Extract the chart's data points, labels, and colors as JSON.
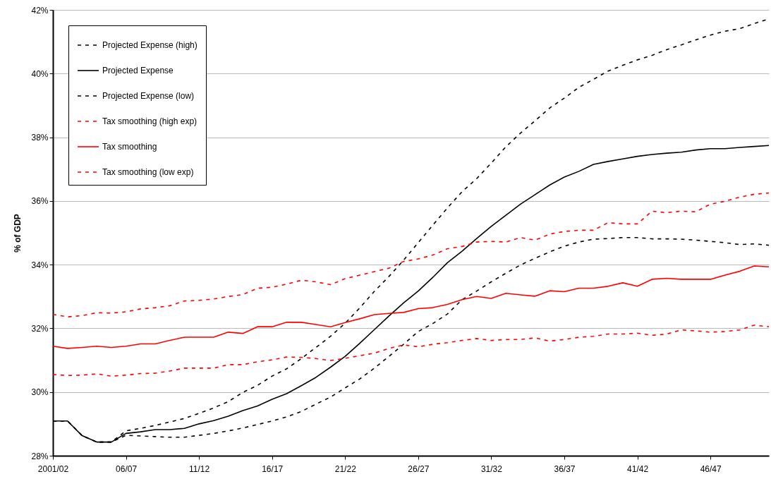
{
  "chart_data": {
    "type": "line",
    "ylabel": "% of GDP",
    "categories": [
      "2001/02",
      null,
      null,
      null,
      null,
      "06/07",
      null,
      null,
      null,
      null,
      "11/12",
      null,
      null,
      null,
      null,
      "16/17",
      null,
      null,
      null,
      null,
      "21/22",
      null,
      null,
      null,
      null,
      "26/27",
      null,
      null,
      null,
      null,
      "31/32",
      null,
      null,
      null,
      null,
      "36/37",
      null,
      null,
      null,
      null,
      "41/42",
      null,
      null,
      null,
      null,
      "46/47",
      null,
      null,
      null,
      null
    ],
    "ylim": [
      28,
      42
    ],
    "yticks": [
      {
        "value": 28,
        "label": "28%"
      },
      {
        "value": 30,
        "label": "30%"
      },
      {
        "value": 32,
        "label": "32%"
      },
      {
        "value": 34,
        "label": "34%"
      },
      {
        "value": 36,
        "label": "36%"
      },
      {
        "value": 38,
        "label": "38%"
      },
      {
        "value": 40,
        "label": "40%"
      },
      {
        "value": 42,
        "label": "42%"
      }
    ],
    "grid": "y",
    "legend": "top left",
    "series": [
      {
        "name": "Projected Expense (high)",
        "color": "#000000",
        "line_style": "dashed",
        "values": [
          29.09,
          29.09,
          28.63,
          28.43,
          28.43,
          28.78,
          28.86,
          28.95,
          29.06,
          29.17,
          29.33,
          29.5,
          29.7,
          29.99,
          30.21,
          30.5,
          30.73,
          31.05,
          31.4,
          31.75,
          32.16,
          32.64,
          33.16,
          33.63,
          34.14,
          34.69,
          35.24,
          35.78,
          36.29,
          36.7,
          37.19,
          37.7,
          38.13,
          38.52,
          38.92,
          39.23,
          39.57,
          39.82,
          40.08,
          40.26,
          40.43,
          40.57,
          40.75,
          40.9,
          41.06,
          41.21,
          41.33,
          41.41,
          41.57,
          41.72
        ]
      },
      {
        "name": "Projected Expense",
        "color": "#000000",
        "line_style": "solid",
        "values": [
          29.09,
          29.09,
          28.63,
          28.43,
          28.43,
          28.7,
          28.75,
          28.82,
          28.82,
          28.86,
          29.0,
          29.1,
          29.24,
          29.42,
          29.56,
          29.77,
          29.95,
          30.2,
          30.46,
          30.78,
          31.12,
          31.53,
          31.96,
          32.39,
          32.8,
          33.17,
          33.6,
          34.06,
          34.42,
          34.82,
          35.2,
          35.55,
          35.9,
          36.2,
          36.5,
          36.75,
          36.93,
          37.15,
          37.24,
          37.32,
          37.4,
          37.46,
          37.5,
          37.53,
          37.6,
          37.64,
          37.64,
          37.68,
          37.71,
          37.74
        ]
      },
      {
        "name": "Projected Expense (low)",
        "color": "#000000",
        "line_style": "dashed",
        "values": [
          29.09,
          29.09,
          28.63,
          28.43,
          28.43,
          28.64,
          28.62,
          28.6,
          28.58,
          28.58,
          28.64,
          28.7,
          28.78,
          28.87,
          28.98,
          29.09,
          29.22,
          29.39,
          29.62,
          29.84,
          30.13,
          30.41,
          30.75,
          31.12,
          31.5,
          31.9,
          32.15,
          32.45,
          32.9,
          33.17,
          33.46,
          33.73,
          33.99,
          34.2,
          34.4,
          34.58,
          34.71,
          34.8,
          34.82,
          34.85,
          34.85,
          34.81,
          34.81,
          34.8,
          34.77,
          34.73,
          34.69,
          34.63,
          34.65,
          34.61
        ]
      },
      {
        "name": "Tax smoothing (high exp)",
        "color": "#ff0000",
        "line_style": "dashed",
        "values": [
          32.44,
          32.36,
          32.4,
          32.49,
          32.48,
          32.52,
          32.61,
          32.65,
          32.71,
          32.86,
          32.88,
          32.92,
          33.0,
          33.06,
          33.26,
          33.29,
          33.39,
          33.51,
          33.46,
          33.37,
          33.56,
          33.67,
          33.78,
          33.89,
          34.1,
          34.18,
          34.3,
          34.5,
          34.57,
          34.71,
          34.73,
          34.71,
          34.85,
          34.77,
          34.96,
          35.04,
          35.08,
          35.08,
          35.32,
          35.28,
          35.28,
          35.68,
          35.63,
          35.68,
          35.66,
          35.9,
          35.99,
          36.12,
          36.21,
          36.25
        ]
      },
      {
        "name": "Tax smoothing",
        "color": "#ff0000",
        "line_style": "solid",
        "values": [
          31.44,
          31.37,
          31.4,
          31.44,
          31.4,
          31.44,
          31.51,
          31.51,
          31.62,
          31.72,
          31.72,
          31.72,
          31.88,
          31.84,
          32.05,
          32.05,
          32.19,
          32.19,
          32.12,
          32.05,
          32.18,
          32.3,
          32.43,
          32.47,
          32.5,
          32.62,
          32.65,
          32.75,
          32.9,
          33.0,
          32.94,
          33.1,
          33.05,
          33.01,
          33.18,
          33.15,
          33.26,
          33.26,
          33.32,
          33.43,
          33.32,
          33.54,
          33.57,
          33.54,
          33.54,
          33.54,
          33.67,
          33.79,
          33.96,
          33.93
        ]
      },
      {
        "name": "Tax smoothing (low exp)",
        "color": "#ff0000",
        "line_style": "dashed",
        "values": [
          30.55,
          30.52,
          30.53,
          30.57,
          30.5,
          30.53,
          30.58,
          30.59,
          30.66,
          30.75,
          30.75,
          30.75,
          30.86,
          30.86,
          30.95,
          31.01,
          31.1,
          31.09,
          31.05,
          30.99,
          31.06,
          31.14,
          31.22,
          31.37,
          31.48,
          31.42,
          31.5,
          31.55,
          31.62,
          31.68,
          31.62,
          31.65,
          31.65,
          31.7,
          31.6,
          31.65,
          31.72,
          31.75,
          31.82,
          31.82,
          31.85,
          31.78,
          31.82,
          31.95,
          31.92,
          31.88,
          31.9,
          31.95,
          32.1,
          32.05
        ]
      }
    ]
  }
}
